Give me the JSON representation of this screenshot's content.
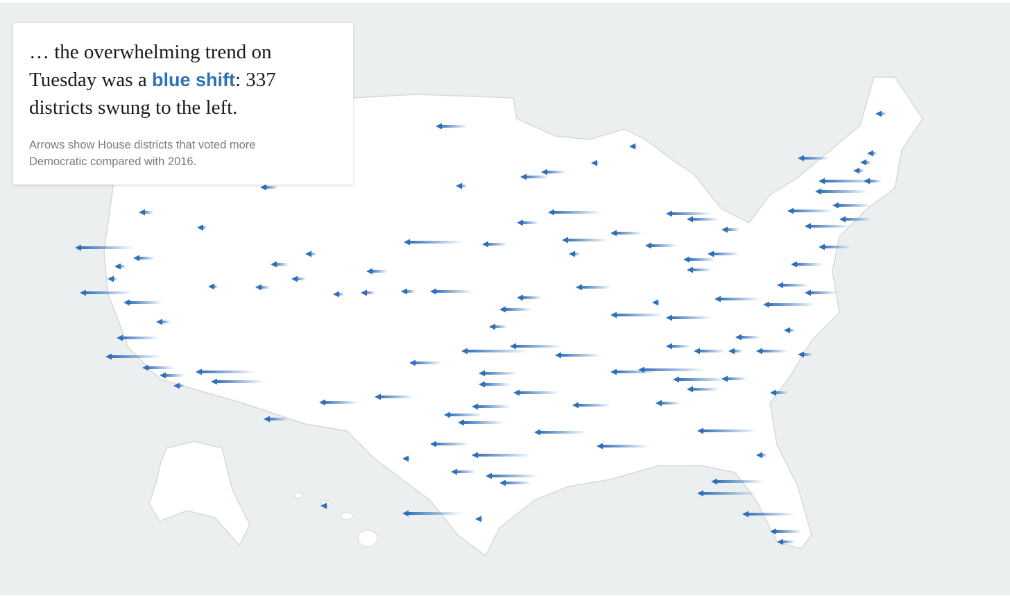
{
  "headline": {
    "lead": "… the overwhelming trend on Tuesday was a ",
    "highlight": "blue shift",
    "tail": ": 337 districts swung to the left."
  },
  "note": "Arrows show House districts that voted more Democratic compared with 2016."
}
